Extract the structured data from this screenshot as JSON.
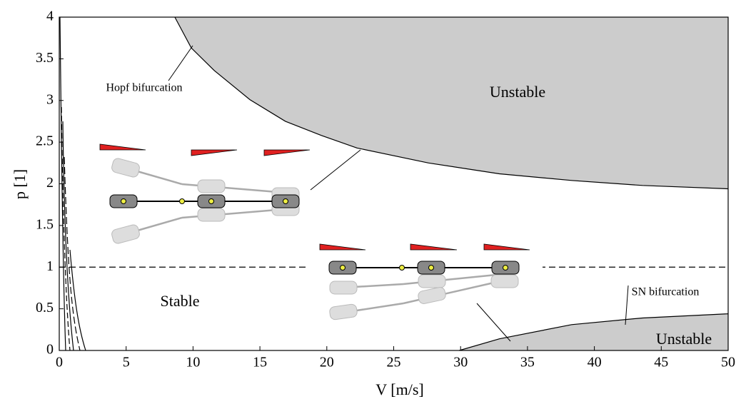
{
  "chart_data": {
    "type": "region",
    "xlabel": "V [m/s]",
    "ylabel": "p [1]",
    "xlim": [
      0,
      50
    ],
    "ylim": [
      0,
      4
    ],
    "xticks": [
      0,
      5,
      10,
      15,
      20,
      25,
      30,
      35,
      40,
      45,
      50
    ],
    "yticks": [
      0,
      0.5,
      1,
      1.5,
      2,
      2.5,
      3,
      3.5,
      4
    ],
    "hline": 1,
    "series": [
      {
        "name": "Hopf bifurcation",
        "color": "#cccccc",
        "fill": "above",
        "x": [
          8.64,
          9.87,
          11.58,
          14.25,
          16.9,
          19.6,
          22.25,
          27.6,
          32.9,
          38.3,
          43.6,
          50
        ],
        "values": [
          4,
          3.63,
          3.36,
          3.01,
          2.75,
          2.58,
          2.43,
          2.25,
          2.12,
          2.04,
          1.98,
          1.94
        ]
      },
      {
        "name": "SN bifurcation",
        "color": "#cccccc",
        "fill": "below",
        "x": [
          29.9,
          32.9,
          38.3,
          43.6,
          50
        ],
        "values": [
          0,
          0.14,
          0.31,
          0.39,
          0.44
        ]
      }
    ],
    "annotations": [
      "Unstable",
      "Unstable",
      "Stable"
    ]
  }
}
